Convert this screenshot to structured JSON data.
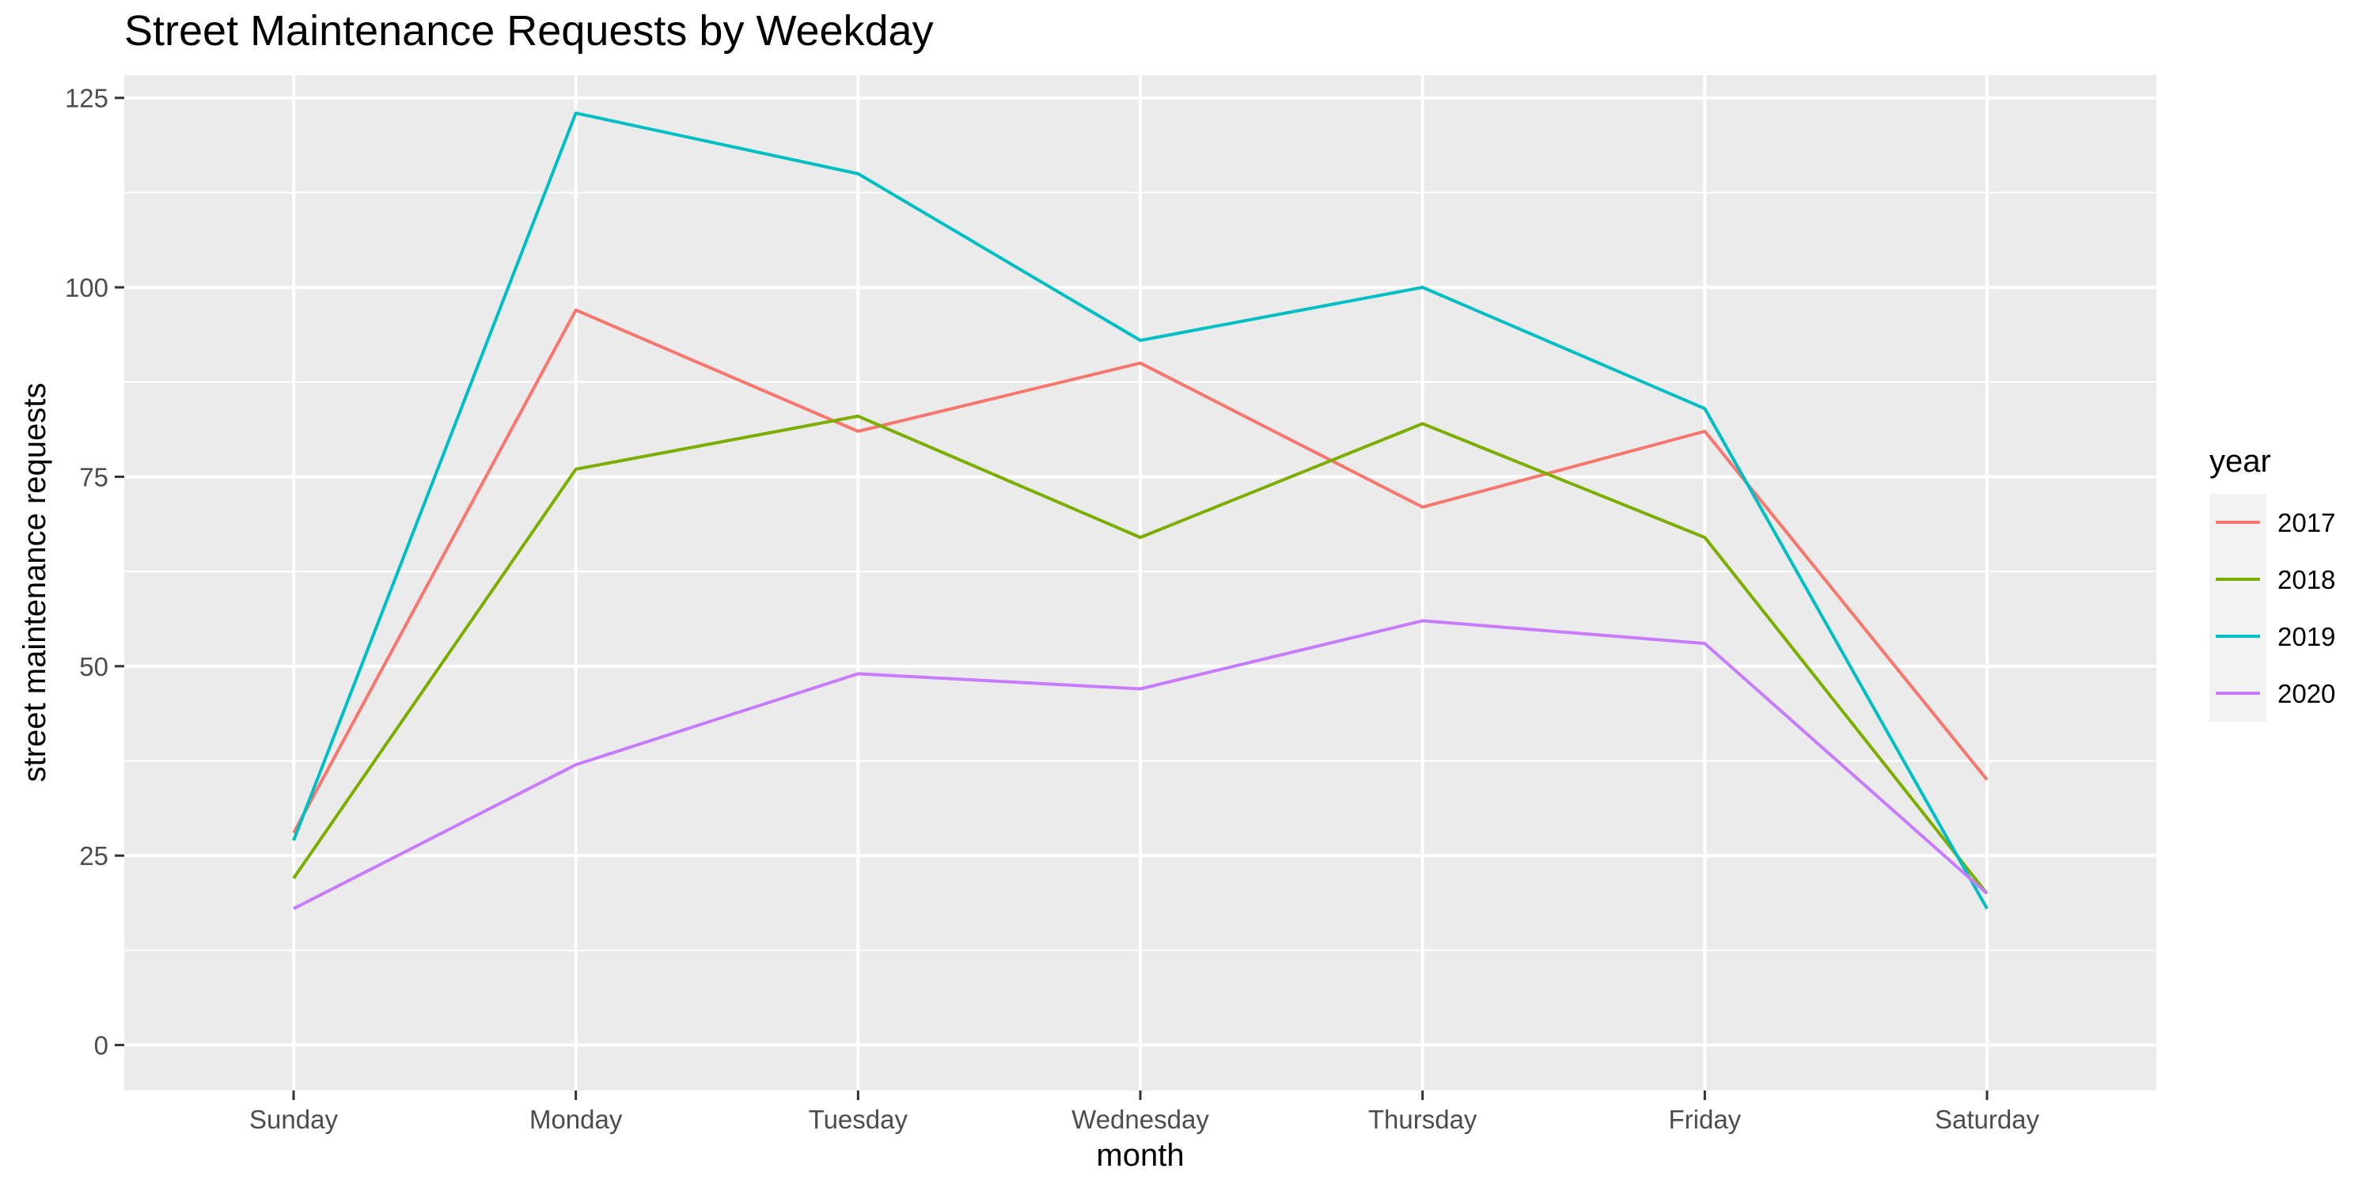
{
  "chart_data": {
    "type": "line",
    "title": "Street Maintenance Requests by Weekday",
    "xlabel": "month",
    "ylabel": "street maintenance requests",
    "categories": [
      "Sunday",
      "Monday",
      "Tuesday",
      "Wednesday",
      "Thursday",
      "Friday",
      "Saturday"
    ],
    "y_ticks": [
      0,
      25,
      50,
      75,
      100,
      125
    ],
    "ylim": [
      -6,
      128
    ],
    "grid": true,
    "legend": {
      "title": "year",
      "position": "right"
    },
    "series": [
      {
        "name": "2017",
        "color": "#F8766D",
        "values": [
          28,
          97,
          81,
          90,
          71,
          81,
          35
        ]
      },
      {
        "name": "2018",
        "color": "#7CAE00",
        "values": [
          22,
          76,
          83,
          67,
          82,
          67,
          20
        ]
      },
      {
        "name": "2019",
        "color": "#00BFC4",
        "values": [
          27,
          123,
          115,
          93,
          100,
          84,
          18
        ]
      },
      {
        "name": "2020",
        "color": "#C77CFF",
        "values": [
          18,
          37,
          49,
          47,
          56,
          53,
          20
        ]
      }
    ]
  }
}
